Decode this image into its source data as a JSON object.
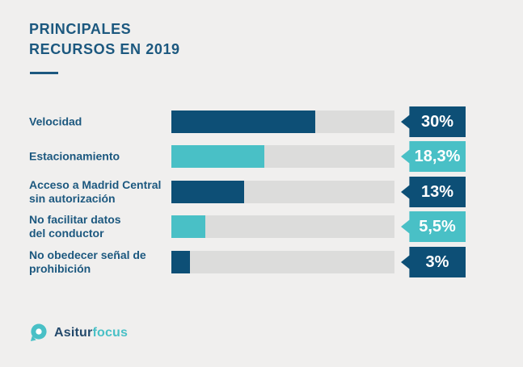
{
  "header": {
    "title": "PRINCIPALES\nRECURSOS EN 2019"
  },
  "chart_data": {
    "type": "bar",
    "orientation": "horizontal",
    "title": "PRINCIPALES RECURSOS EN 2019",
    "categories": [
      "Velocidad",
      "Estacionamiento",
      "Acceso a Madrid Central sin autorización",
      "No facilitar datos del conductor",
      "No obedecer señal de prohibición"
    ],
    "values": [
      30,
      18.3,
      13,
      5.5,
      3
    ],
    "value_labels": [
      "30%",
      "18,3%",
      "13%",
      "5,5%",
      "3%"
    ],
    "unit": "%",
    "grid": false,
    "legend": false,
    "layout_hints": {
      "track_full_is_not_100_percent": true,
      "fill_fractions_of_track": [
        0.645,
        0.417,
        0.325,
        0.152,
        0.083
      ]
    },
    "rows": [
      {
        "label": "Velocidad",
        "value": 30,
        "value_label": "30%",
        "fill_fraction": 0.645,
        "color": "#0d4f76",
        "tone": "dark"
      },
      {
        "label": "Estacionamiento",
        "value": 18.3,
        "value_label": "18,3%",
        "fill_fraction": 0.417,
        "color": "#49c0c6",
        "tone": "teal"
      },
      {
        "label": "Acceso a Madrid Central\nsin autorización",
        "value": 13,
        "value_label": "13%",
        "fill_fraction": 0.325,
        "color": "#0d4f76",
        "tone": "dark"
      },
      {
        "label": "No facilitar datos\ndel conductor",
        "value": 5.5,
        "value_label": "5,5%",
        "fill_fraction": 0.152,
        "color": "#49c0c6",
        "tone": "teal"
      },
      {
        "label": "No obedecer señal de\nprohibición",
        "value": 3,
        "value_label": "3%",
        "fill_fraction": 0.083,
        "color": "#0d4f76",
        "tone": "dark"
      }
    ]
  },
  "colors": {
    "background": "#f0efee",
    "track": "#dcdcdb",
    "dark_blue": "#0d4f76",
    "teal": "#49c0c6",
    "heading_blue": "#1c587f",
    "badge_text": "#ffffff"
  },
  "logo": {
    "brand_primary": "Asitur",
    "brand_accent": "focus"
  }
}
